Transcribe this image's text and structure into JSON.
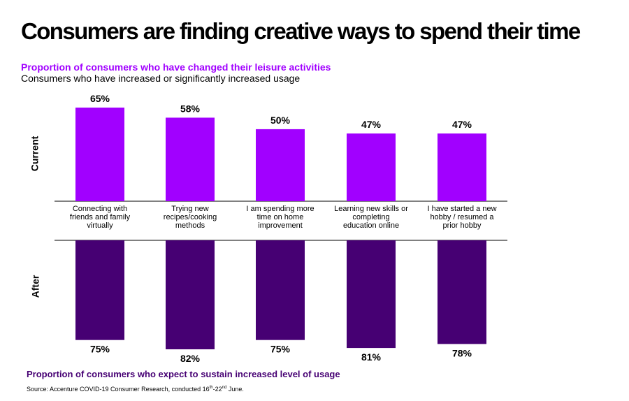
{
  "header": {
    "title": "Consumers are finding creative ways to spend their time",
    "subtitle": "Proportion of consumers who have changed their leisure activities",
    "subtitle2": "Consumers who have increased or significantly increased usage"
  },
  "side_labels": {
    "current": "Current",
    "after": "After"
  },
  "footer": {
    "label": "Proportion of consumers who expect to sustain increased level of usage",
    "source_pre": "Source: Accenture COVID-19 Consumer Research, conducted 16",
    "source_sup1": "th",
    "source_mid": "-22",
    "source_sup2": "nd",
    "source_post": " June."
  },
  "colors": {
    "current": "#a100ff",
    "after": "#460073"
  },
  "chart_data": {
    "type": "bar",
    "categories": [
      [
        "Connecting with",
        "friends and family",
        "virtually"
      ],
      [
        "Trying new",
        "recipes/cooking",
        "methods"
      ],
      [
        "I am spending more",
        "time on home",
        "improvement"
      ],
      [
        "Learning new skills or",
        "completing",
        "education online"
      ],
      [
        "I have started a new",
        "hobby / resumed a",
        "prior hobby"
      ]
    ],
    "series": [
      {
        "name": "Current",
        "values": [
          65,
          58,
          50,
          47,
          47
        ],
        "labels": [
          "65%",
          "58%",
          "50%",
          "47%",
          "47%"
        ]
      },
      {
        "name": "After",
        "values": [
          75,
          82,
          75,
          81,
          78
        ],
        "labels": [
          "75%",
          "82%",
          "75%",
          "81%",
          "78%"
        ]
      }
    ],
    "ylim": [
      0,
      100
    ]
  }
}
